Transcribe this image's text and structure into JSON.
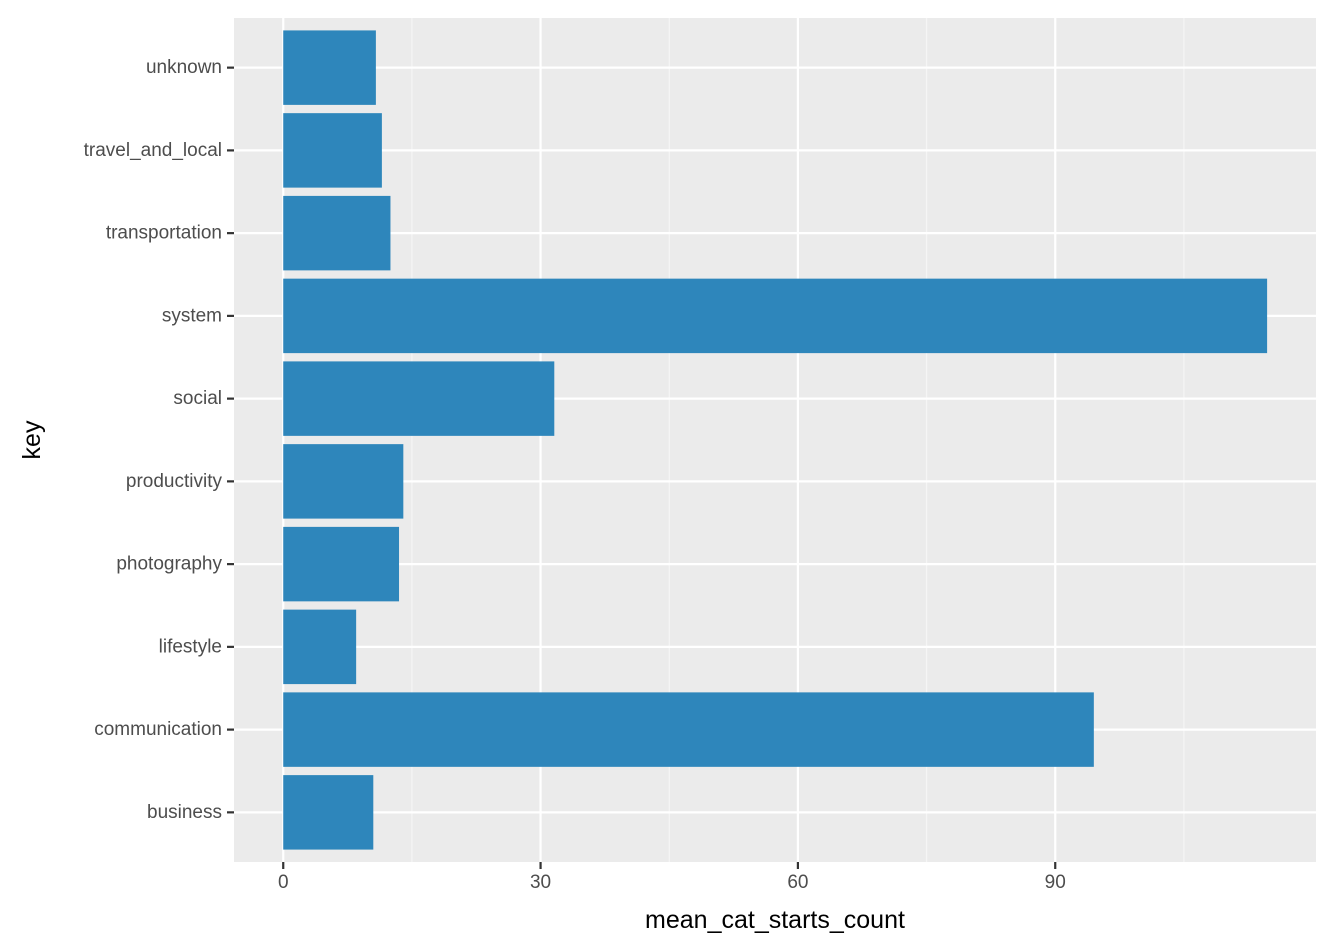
{
  "chart_data": {
    "type": "bar",
    "orientation": "horizontal",
    "categories": [
      "business",
      "communication",
      "lifestyle",
      "photography",
      "productivity",
      "social",
      "system",
      "transportation",
      "travel_and_local",
      "unknown"
    ],
    "values": [
      10.5,
      94.5,
      8.5,
      13.5,
      14.0,
      31.6,
      114.7,
      12.5,
      11.5,
      10.8
    ],
    "xlabel": "mean_cat_starts_count",
    "ylabel": "key",
    "xlim": [
      -5.74,
      120.4
    ],
    "xticks": [
      0,
      30,
      60,
      90
    ],
    "xtick_labels": [
      "0",
      "30",
      "60",
      "90"
    ],
    "grid": true,
    "legend": "none",
    "colors": {
      "bar": "#2e86bb",
      "panel": "#ebebeb",
      "grid_major": "#ffffff",
      "grid_minor": "#f5f5f5",
      "tick": "#333333",
      "tick_label": "#4d4d4d",
      "axis_title": "#000000"
    }
  }
}
